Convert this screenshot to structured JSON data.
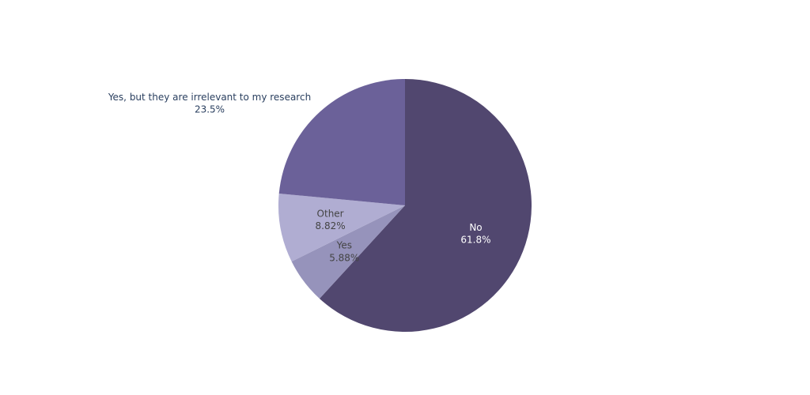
{
  "chart_data": {
    "type": "pie",
    "direction": "clockwise",
    "start_angle_deg": 90,
    "slices": [
      {
        "label": "No",
        "value": 61.8,
        "percent_text": "61.8%",
        "color": "#51476f",
        "text_color": "#ffffff",
        "label_pos": "inside"
      },
      {
        "label": "Yes",
        "value": 5.88,
        "percent_text": "5.88%",
        "color": "#9693bb",
        "text_color": "#444444",
        "label_pos": "inside"
      },
      {
        "label": "Other",
        "value": 8.82,
        "percent_text": "8.82%",
        "color": "#b0add2",
        "text_color": "#444444",
        "label_pos": "inside"
      },
      {
        "label": "Yes, but they are irrelevant to my research",
        "value": 23.5,
        "percent_text": "23.5%",
        "color": "#6b6199",
        "text_color": "#2a3f5f",
        "label_pos": "outside"
      }
    ]
  }
}
